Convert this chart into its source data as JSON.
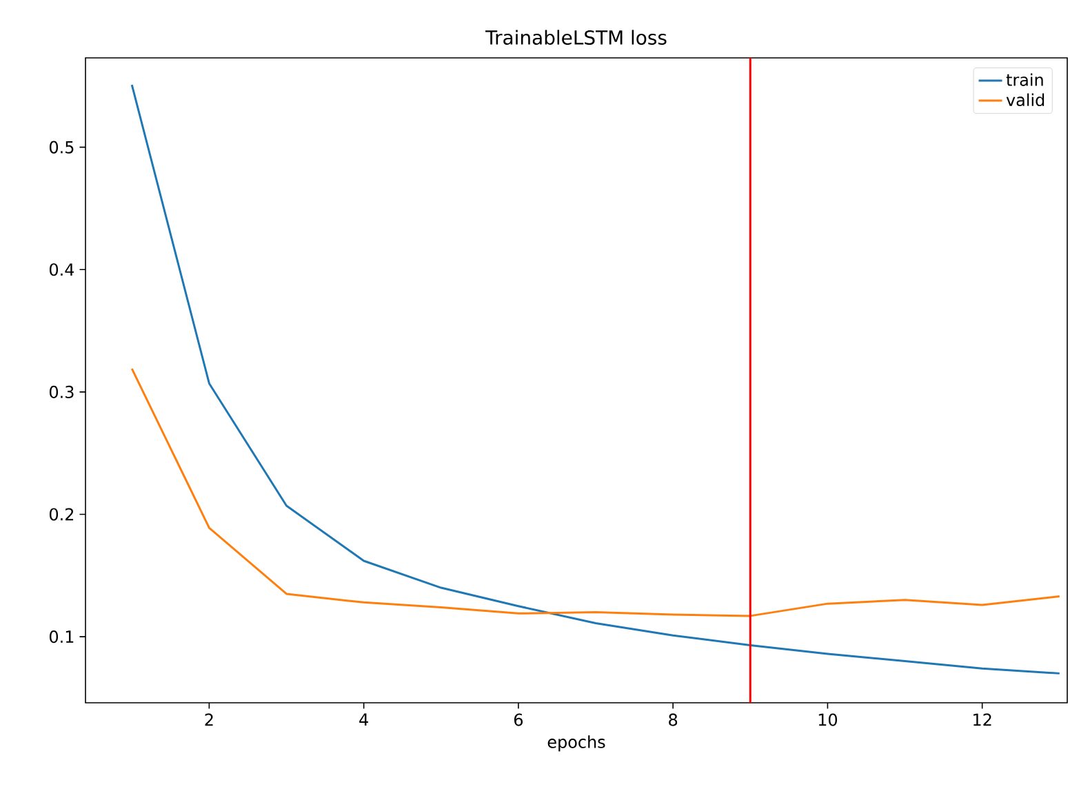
{
  "chart_data": {
    "type": "line",
    "title": "TrainableLSTM loss",
    "xlabel": "epochs",
    "x": [
      1,
      2,
      3,
      4,
      5,
      6,
      7,
      8,
      9,
      10,
      11,
      12,
      13
    ],
    "series": [
      {
        "name": "train",
        "color": "#1f77b4",
        "values": [
          0.551,
          0.307,
          0.207,
          0.162,
          0.14,
          0.125,
          0.111,
          0.101,
          0.093,
          0.086,
          0.08,
          0.074,
          0.07
        ]
      },
      {
        "name": "valid",
        "color": "#ff7f0e",
        "values": [
          0.319,
          0.189,
          0.135,
          0.128,
          0.124,
          0.119,
          0.12,
          0.118,
          0.117,
          0.127,
          0.13,
          0.126,
          0.133
        ]
      }
    ],
    "xlim": [
      0.4,
      13.1
    ],
    "ylim": [
      0.046,
      0.573
    ],
    "xticks": [
      2,
      4,
      6,
      8,
      10,
      12
    ],
    "yticks": [
      0.1,
      0.2,
      0.3,
      0.4,
      0.5
    ],
    "ref_lines": [
      {
        "axis": "x",
        "value": 9,
        "color": "#ff0000"
      }
    ],
    "legend": "top right",
    "grid": false,
    "marker": "none",
    "line_style": "solid"
  }
}
